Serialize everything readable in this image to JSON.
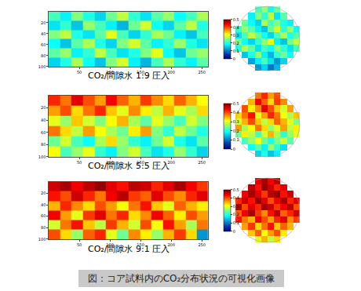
{
  "caption": "図：コア試料内のCO₂分布状況の可視化画像",
  "chart_data": [
    {
      "type": "heatmap",
      "title": "CO₂/間隙水 1:9 圧入",
      "x": [
        9,
        28,
        46,
        65,
        84,
        102,
        121,
        140,
        158,
        177,
        196,
        214,
        233,
        251
      ],
      "y": [
        8,
        25,
        42,
        58,
        75,
        92
      ],
      "xlim": [
        0,
        260
      ],
      "ylim": [
        100,
        0
      ],
      "xticks": [
        50,
        100,
        150,
        200,
        250
      ],
      "yticks": [
        20,
        40,
        60,
        80,
        100
      ],
      "colorbar": {
        "range": [
          0,
          0.5
        ],
        "ticks": [
          0,
          0.1,
          0.2,
          0.3,
          0.4,
          0.5
        ]
      },
      "z": [
        [
          0.22,
          0.18,
          0.25,
          0.2,
          0.16,
          0.24,
          0.28,
          0.21,
          0.17,
          0.23,
          0.26,
          0.19,
          0.22,
          0.27
        ],
        [
          0.17,
          0.21,
          0.15,
          0.26,
          0.22,
          0.18,
          0.14,
          0.24,
          0.29,
          0.19,
          0.16,
          0.23,
          0.28,
          0.2
        ],
        [
          0.25,
          0.28,
          0.2,
          0.17,
          0.23,
          0.3,
          0.22,
          0.16,
          0.21,
          0.27,
          0.24,
          0.18,
          0.15,
          0.22
        ],
        [
          0.19,
          0.15,
          0.23,
          0.27,
          0.2,
          0.16,
          0.25,
          0.29,
          0.23,
          0.18,
          0.21,
          0.26,
          0.2,
          0.17
        ],
        [
          0.23,
          0.26,
          0.18,
          0.21,
          0.28,
          0.22,
          0.17,
          0.2,
          0.25,
          0.3,
          0.19,
          0.15,
          0.24,
          0.26
        ],
        [
          0.16,
          0.2,
          0.27,
          0.19,
          0.15,
          0.25,
          0.29,
          0.18,
          0.14,
          0.22,
          0.27,
          0.21,
          0.18,
          0.23
        ]
      ]
    },
    {
      "type": "heatmap",
      "tick_labels": false,
      "zlim": [
        0,
        0.5
      ],
      "z": [
        [
          null,
          null,
          null,
          0.22,
          0.26,
          0.19,
          0.24,
          null,
          null,
          null
        ],
        [
          null,
          null,
          0.18,
          0.25,
          0.21,
          0.28,
          0.17,
          0.23,
          null,
          null
        ],
        [
          null,
          0.24,
          0.19,
          0.16,
          0.27,
          0.22,
          0.25,
          0.2,
          0.18,
          null
        ],
        [
          0.21,
          0.26,
          0.23,
          0.18,
          0.15,
          0.24,
          0.29,
          0.21,
          0.26,
          0.19
        ],
        [
          0.17,
          0.22,
          0.28,
          0.24,
          0.19,
          0.16,
          0.22,
          0.27,
          0.2,
          0.23
        ],
        [
          0.25,
          0.19,
          0.16,
          0.21,
          0.26,
          0.3,
          0.18,
          0.15,
          0.24,
          0.28
        ],
        [
          0.2,
          0.27,
          0.23,
          0.17,
          0.22,
          0.19,
          0.25,
          0.21,
          0.17,
          0.22
        ],
        [
          null,
          0.15,
          0.2,
          0.26,
          0.18,
          0.14,
          0.21,
          0.24,
          0.19,
          null
        ],
        [
          null,
          null,
          0.13,
          0.18,
          0.22,
          0.17,
          0.12,
          0.16,
          null,
          null
        ],
        [
          null,
          null,
          null,
          0.12,
          0.16,
          0.1,
          0.14,
          null,
          null,
          null
        ]
      ]
    },
    {
      "type": "heatmap",
      "title": "CO₂/間隙水 5:5 圧入",
      "x": [
        9,
        28,
        46,
        65,
        84,
        102,
        121,
        140,
        158,
        177,
        196,
        214,
        233,
        251
      ],
      "y": [
        8,
        25,
        42,
        58,
        75,
        92
      ],
      "xlim": [
        0,
        260
      ],
      "ylim": [
        100,
        0
      ],
      "xticks": [
        50,
        100,
        150,
        200,
        250
      ],
      "yticks": [
        20,
        40,
        60,
        80,
        100
      ],
      "colorbar": {
        "range": [
          0,
          0.5
        ],
        "ticks": [
          0,
          0.1,
          0.2,
          0.3,
          0.4,
          0.5
        ]
      },
      "z": [
        [
          0.42,
          0.38,
          0.45,
          0.4,
          0.36,
          0.44,
          0.39,
          0.35,
          0.41,
          0.37,
          0.33,
          0.39,
          0.35,
          0.31
        ],
        [
          0.36,
          0.4,
          0.33,
          0.38,
          0.42,
          0.34,
          0.3,
          0.37,
          0.32,
          0.28,
          0.35,
          0.3,
          0.27,
          0.33
        ],
        [
          0.3,
          0.26,
          0.34,
          0.29,
          0.25,
          0.31,
          0.35,
          0.27,
          0.23,
          0.3,
          0.26,
          0.22,
          0.29,
          0.25
        ],
        [
          0.38,
          0.33,
          0.28,
          0.36,
          0.31,
          0.27,
          0.24,
          0.32,
          0.36,
          0.25,
          0.21,
          0.28,
          0.24,
          0.2
        ],
        [
          0.24,
          0.29,
          0.22,
          0.19,
          0.27,
          0.33,
          0.26,
          0.21,
          0.18,
          0.24,
          0.29,
          0.2,
          0.17,
          0.23
        ],
        [
          0.31,
          0.22,
          0.26,
          0.3,
          0.21,
          0.18,
          0.25,
          0.29,
          0.22,
          0.17,
          0.2,
          0.26,
          0.21,
          0.16
        ]
      ]
    },
    {
      "type": "heatmap",
      "tick_labels": false,
      "zlim": [
        0,
        0.5
      ],
      "z": [
        [
          null,
          null,
          null,
          0.38,
          0.42,
          0.36,
          0.4,
          null,
          null,
          null
        ],
        [
          null,
          null,
          0.35,
          0.44,
          0.39,
          0.33,
          0.41,
          0.37,
          null,
          null
        ],
        [
          null,
          0.4,
          0.32,
          0.37,
          0.45,
          0.4,
          0.34,
          0.29,
          0.36,
          null
        ],
        [
          0.33,
          0.38,
          0.43,
          0.3,
          0.36,
          0.42,
          0.38,
          0.31,
          0.27,
          0.34
        ],
        [
          0.29,
          0.35,
          0.4,
          0.34,
          0.28,
          0.33,
          0.39,
          0.35,
          0.3,
          0.25
        ],
        [
          0.36,
          0.27,
          0.31,
          0.38,
          0.33,
          0.26,
          0.3,
          0.36,
          0.28,
          0.32
        ],
        [
          0.24,
          0.32,
          0.28,
          0.22,
          0.29,
          0.35,
          0.27,
          0.21,
          0.26,
          0.3
        ],
        [
          null,
          0.22,
          0.26,
          0.31,
          0.24,
          0.2,
          0.25,
          0.29,
          0.23,
          null
        ],
        [
          null,
          null,
          0.19,
          0.23,
          0.18,
          0.26,
          0.21,
          0.17,
          null,
          null
        ],
        [
          null,
          null,
          null,
          0.16,
          0.2,
          0.15,
          0.18,
          null,
          null,
          null
        ]
      ]
    },
    {
      "type": "heatmap",
      "title": "CO₂/間隙水 9:1 圧入",
      "x": [
        9,
        28,
        46,
        65,
        84,
        102,
        121,
        140,
        158,
        177,
        196,
        214,
        233,
        251
      ],
      "y": [
        8,
        25,
        42,
        58,
        75,
        92
      ],
      "xlim": [
        0,
        260
      ],
      "ylim": [
        100,
        0
      ],
      "xticks": [
        50,
        100,
        150,
        200,
        250
      ],
      "yticks": [
        20,
        40,
        60,
        80,
        100
      ],
      "colorbar": {
        "range": [
          0,
          0.5
        ],
        "ticks": [
          0,
          0.1,
          0.2,
          0.3,
          0.4,
          0.5
        ]
      },
      "z": [
        [
          0.46,
          0.48,
          0.44,
          0.47,
          0.49,
          0.45,
          0.43,
          0.47,
          0.46,
          0.42,
          0.45,
          0.48,
          0.44,
          0.41
        ],
        [
          0.43,
          0.4,
          0.46,
          0.42,
          0.38,
          0.44,
          0.47,
          0.41,
          0.39,
          0.45,
          0.4,
          0.37,
          0.42,
          0.45
        ],
        [
          0.35,
          0.42,
          0.37,
          0.33,
          0.4,
          0.36,
          0.31,
          0.38,
          0.43,
          0.34,
          0.3,
          0.39,
          0.35,
          0.32
        ],
        [
          0.44,
          0.36,
          0.3,
          0.41,
          0.45,
          0.38,
          0.42,
          0.33,
          0.37,
          0.44,
          0.39,
          0.32,
          0.4,
          0.36
        ],
        [
          0.29,
          0.38,
          0.43,
          0.34,
          0.28,
          0.41,
          0.35,
          0.29,
          0.4,
          0.31,
          0.43,
          0.36,
          0.27,
          0.38
        ],
        [
          0.4,
          0.33,
          0.26,
          0.39,
          0.42,
          0.3,
          0.24,
          0.37,
          0.32,
          0.26,
          0.35,
          0.41,
          0.33,
          0.12
        ]
      ]
    },
    {
      "type": "heatmap",
      "tick_labels": false,
      "zlim": [
        0,
        0.5
      ],
      "z": [
        [
          null,
          null,
          null,
          0.45,
          0.48,
          0.44,
          0.47,
          null,
          null,
          null
        ],
        [
          null,
          null,
          0.47,
          0.43,
          0.49,
          0.46,
          0.42,
          0.45,
          null,
          null
        ],
        [
          null,
          0.44,
          0.48,
          0.45,
          0.41,
          0.47,
          0.49,
          0.43,
          0.46,
          null
        ],
        [
          0.42,
          0.46,
          0.43,
          0.49,
          0.45,
          0.4,
          0.44,
          0.48,
          0.42,
          0.45
        ],
        [
          0.47,
          0.4,
          0.45,
          0.42,
          0.48,
          0.46,
          0.41,
          0.44,
          0.47,
          0.4
        ],
        [
          0.39,
          0.44,
          0.48,
          0.41,
          0.37,
          0.43,
          0.47,
          0.39,
          0.42,
          0.46
        ],
        [
          0.43,
          0.38,
          0.35,
          0.44,
          0.4,
          0.36,
          0.42,
          0.45,
          0.37,
          0.41
        ],
        [
          null,
          0.36,
          0.41,
          0.33,
          0.38,
          0.43,
          0.34,
          0.39,
          0.35,
          null
        ],
        [
          null,
          null,
          0.34,
          0.39,
          0.31,
          0.36,
          0.4,
          0.32,
          null,
          null
        ],
        [
          null,
          null,
          null,
          0.3,
          0.35,
          0.28,
          0.33,
          null,
          null,
          null
        ]
      ]
    }
  ]
}
